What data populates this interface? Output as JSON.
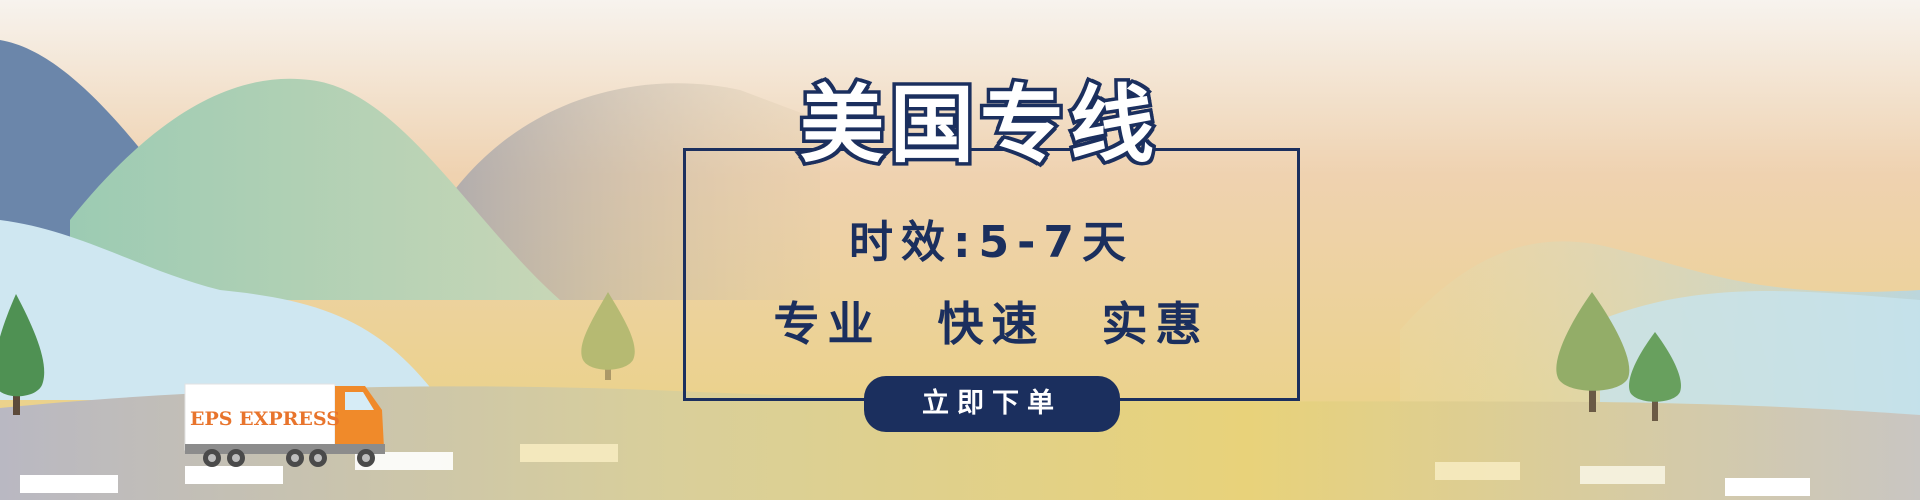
{
  "banner": {
    "title": "美国专线",
    "subtitle": "时效:5-7天",
    "features": [
      "专业",
      "快速",
      "实惠"
    ],
    "order_button": "立即下单",
    "truck_label": "EPS EXPRESS"
  },
  "colors": {
    "navy": "#1b2f5e",
    "accent_orange": "#e8742c",
    "sky_top": "#f4efe8",
    "sky_bottom": "#e8cf83"
  }
}
